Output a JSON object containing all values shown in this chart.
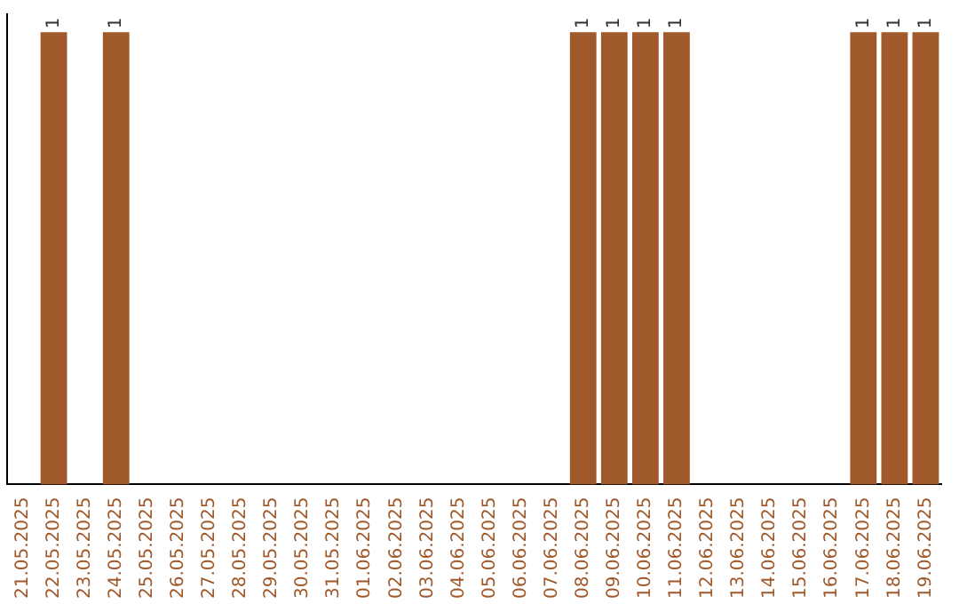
{
  "chart_data": {
    "type": "bar",
    "tick_labels": "x",
    "categories": [
      "21.05.2025",
      "22.05.2025",
      "23.05.2025",
      "24.05.2025",
      "25.05.2025",
      "26.05.2025",
      "27.05.2025",
      "28.05.2025",
      "29.05.2025",
      "30.05.2025",
      "31.05.2025",
      "01.06.2025",
      "02.06.2025",
      "03.06.2025",
      "04.06.2025",
      "05.06.2025",
      "06.06.2025",
      "07.06.2025",
      "08.06.2025",
      "09.06.2025",
      "10.06.2025",
      "11.06.2025",
      "12.06.2025",
      "13.06.2025",
      "14.06.2025",
      "15.06.2025",
      "16.06.2025",
      "17.06.2025",
      "18.06.2025",
      "19.06.2025"
    ],
    "values": [
      0,
      1,
      0,
      1,
      0,
      0,
      0,
      0,
      0,
      0,
      0,
      0,
      0,
      0,
      0,
      0,
      0,
      0,
      1,
      1,
      1,
      1,
      0,
      0,
      0,
      0,
      0,
      1,
      1,
      1
    ],
    "value_labels": [
      null,
      "1",
      null,
      "1",
      null,
      null,
      null,
      null,
      null,
      null,
      null,
      null,
      null,
      null,
      null,
      null,
      null,
      null,
      "1",
      "1",
      "1",
      "1",
      null,
      null,
      null,
      null,
      null,
      "1",
      "1",
      "1"
    ],
    "color": "#a0592b",
    "grid": false,
    "legend": false
  }
}
